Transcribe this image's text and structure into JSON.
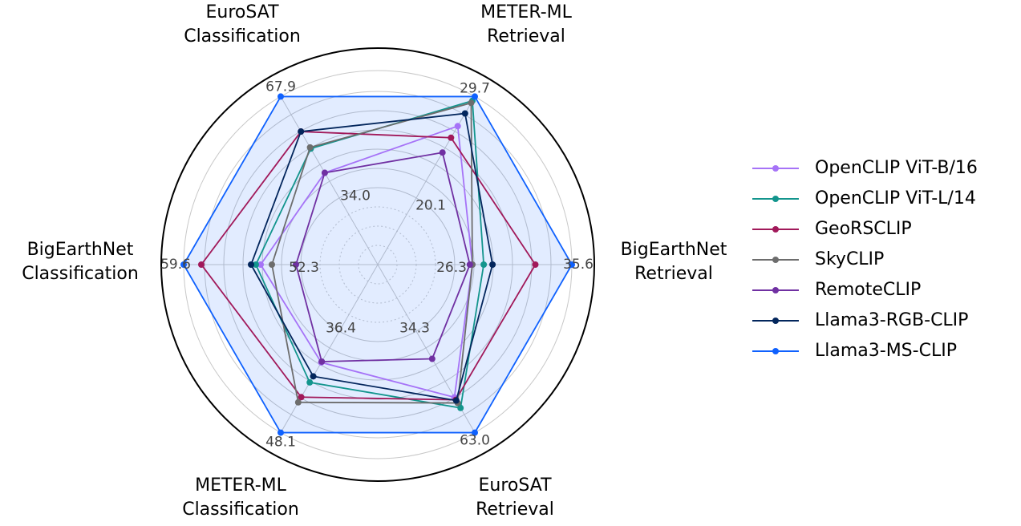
{
  "chart_data": {
    "type": "radar",
    "axes": [
      {
        "label_lines": [
          "METER-ML",
          "Retrieval"
        ],
        "max": 29.7,
        "max_label": "29.7",
        "min": 20.1,
        "min_label": "20.1"
      },
      {
        "label_lines": [
          "BigEarthNet",
          "Retrieval"
        ],
        "max": 35.6,
        "max_label": "35.6",
        "min": 26.3,
        "min_label": "26.3"
      },
      {
        "label_lines": [
          "EuroSAT",
          "Retrieval"
        ],
        "max": 63.0,
        "max_label": "63.0",
        "min": 34.3,
        "min_label": "34.3"
      },
      {
        "label_lines": [
          "METER-ML",
          "Classification"
        ],
        "max": 48.1,
        "max_label": "48.1",
        "min": 36.4,
        "min_label": "36.4"
      },
      {
        "label_lines": [
          "BigEarthNet",
          "Classification"
        ],
        "max": 59.6,
        "max_label": "59.6",
        "min": 52.3,
        "min_label": "52.3"
      },
      {
        "label_lines": [
          "EuroSAT",
          "Classification"
        ],
        "max": 67.9,
        "max_label": "67.9",
        "min": 34.0,
        "min_label": "34.0"
      }
    ],
    "series": [
      {
        "name": "OpenCLIP ViT-B/16",
        "color": "#a673f7",
        "values": [
          26.9,
          27.7,
          53.0,
          40.0,
          54.8,
          42.4
        ]
      },
      {
        "name": "OpenCLIP ViT-L/14",
        "color": "#13958d",
        "values": [
          29.3,
          28.6,
          56.0,
          42.3,
          55.1,
          50.5
        ]
      },
      {
        "name": "GeoRSCLIP",
        "color": "#a1195a",
        "values": [
          25.8,
          32.7,
          53.7,
          44.0,
          58.5,
          56.2
        ]
      },
      {
        "name": "SkyCLIP",
        "color": "#6d6d6d",
        "values": [
          29.1,
          27.7,
          54.6,
          44.6,
          54.1,
          50.9
        ]
      },
      {
        "name": "RemoteCLIP",
        "color": "#7030a2",
        "values": [
          24.4,
          27.5,
          42.1,
          39.9,
          52.6,
          42.4
        ]
      },
      {
        "name": "Llama3-RGB-CLIP",
        "color": "#03265c",
        "values": [
          28.1,
          29.3,
          53.9,
          41.6,
          55.4,
          56.2
        ]
      },
      {
        "name": "Llama3-MS-CLIP",
        "color": "#0f61fe",
        "values": [
          29.7,
          35.6,
          63.0,
          48.1,
          59.6,
          67.9
        ]
      }
    ],
    "fill_series": "Llama3-MS-CLIP",
    "grid": true,
    "legend_position": "right"
  }
}
